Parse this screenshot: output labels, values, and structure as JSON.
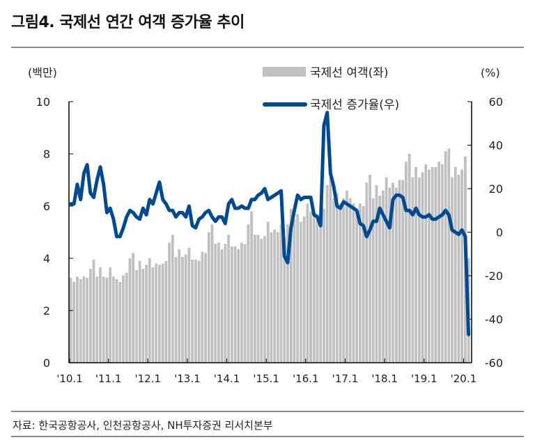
{
  "title": "그림4. 국제선 연간 여객 증가율 추이",
  "source": "자료: 한국공항공사, 인천공항공사, NH투자증권 리서치본부",
  "chart_data": {
    "type": "bar+line",
    "left_unit": "(백만)",
    "right_unit": "(%)",
    "left_ylim": [
      0,
      10
    ],
    "right_ylim": [
      -60,
      60
    ],
    "left_ticks": [
      "0",
      "2",
      "4",
      "6",
      "8",
      "10"
    ],
    "right_ticks": [
      "-60",
      "-40",
      "-20",
      "0",
      "20",
      "40",
      "60"
    ],
    "x_ticks": [
      "'10.1",
      "'11.1",
      "'12.1",
      "'13.1",
      "'14.1",
      "'15.1",
      "'16.1",
      "'17.1",
      "'18.1",
      "'19.1",
      "'20.1"
    ],
    "start": "2010-01",
    "legend": "top-right",
    "series": [
      {
        "name": "국제선 여객(좌)",
        "type": "bar",
        "axis": "left",
        "color": "#c0c0c0",
        "values": [
          3.25,
          3.1,
          3.3,
          3.2,
          3.3,
          3.25,
          3.6,
          3.95,
          3.3,
          3.65,
          3.3,
          3.25,
          3.65,
          3.3,
          3.2,
          3.1,
          3.35,
          3.45,
          4.0,
          4.2,
          3.55,
          3.9,
          3.6,
          3.75,
          4.0,
          3.65,
          3.8,
          3.75,
          3.8,
          3.9,
          4.6,
          4.9,
          4.05,
          4.35,
          4.05,
          4.15,
          4.4,
          3.95,
          3.95,
          3.9,
          4.25,
          4.2,
          5.0,
          5.3,
          4.55,
          4.6,
          4.35,
          4.55,
          4.9,
          4.45,
          4.45,
          4.35,
          4.6,
          4.55,
          5.3,
          5.8,
          4.9,
          4.9,
          4.75,
          4.85,
          5.4,
          5.0,
          5.1,
          5.0,
          5.3,
          4.8,
          5.3,
          5.9,
          5.5,
          5.7,
          5.4,
          5.6,
          6.1,
          5.8,
          5.7,
          5.7,
          6.0,
          5.9,
          6.8,
          7.1,
          6.3,
          6.5,
          6.1,
          6.3,
          6.6,
          6.3,
          6.1,
          5.8,
          6.1,
          6.0,
          6.9,
          7.2,
          6.3,
          6.8,
          6.4,
          6.6,
          7.1,
          6.7,
          6.9,
          6.7,
          7.0,
          7.0,
          7.7,
          8.0,
          7.1,
          7.5,
          7.1,
          7.3,
          7.6,
          7.4,
          7.5,
          7.5,
          7.7,
          7.6,
          8.1,
          8.2,
          7.1,
          7.5,
          7.2,
          7.4,
          7.9,
          4.0
        ]
      },
      {
        "name": "국제선 증가율(우)",
        "type": "line",
        "axis": "right",
        "color": "#004a94",
        "values": [
          13,
          13,
          22,
          15,
          27,
          31,
          18,
          16,
          24,
          30,
          22,
          9,
          11,
          6,
          -2,
          -2,
          2,
          7,
          10,
          9,
          7,
          6,
          11,
          8,
          15,
          13,
          18,
          23,
          15,
          13,
          10,
          10,
          7,
          9,
          9,
          7,
          12,
          3,
          2,
          6,
          7,
          9,
          10,
          7,
          5,
          7,
          7,
          4,
          13,
          15,
          11,
          11,
          12,
          11,
          11,
          15,
          15,
          17,
          18,
          20,
          15,
          16,
          17,
          18,
          19,
          -11,
          -14,
          2,
          10,
          17,
          15,
          16,
          16,
          16,
          8,
          7,
          3,
          49,
          55,
          27,
          21,
          12,
          11,
          14,
          13,
          12,
          11,
          10,
          4,
          3,
          -2,
          1,
          5,
          5,
          11,
          8,
          5,
          2,
          15,
          17,
          17,
          16,
          10,
          10,
          8,
          11,
          8,
          7,
          7,
          8,
          6,
          6,
          7,
          8,
          10,
          8,
          1,
          0,
          -1,
          1,
          -2,
          -47
        ]
      }
    ]
  }
}
